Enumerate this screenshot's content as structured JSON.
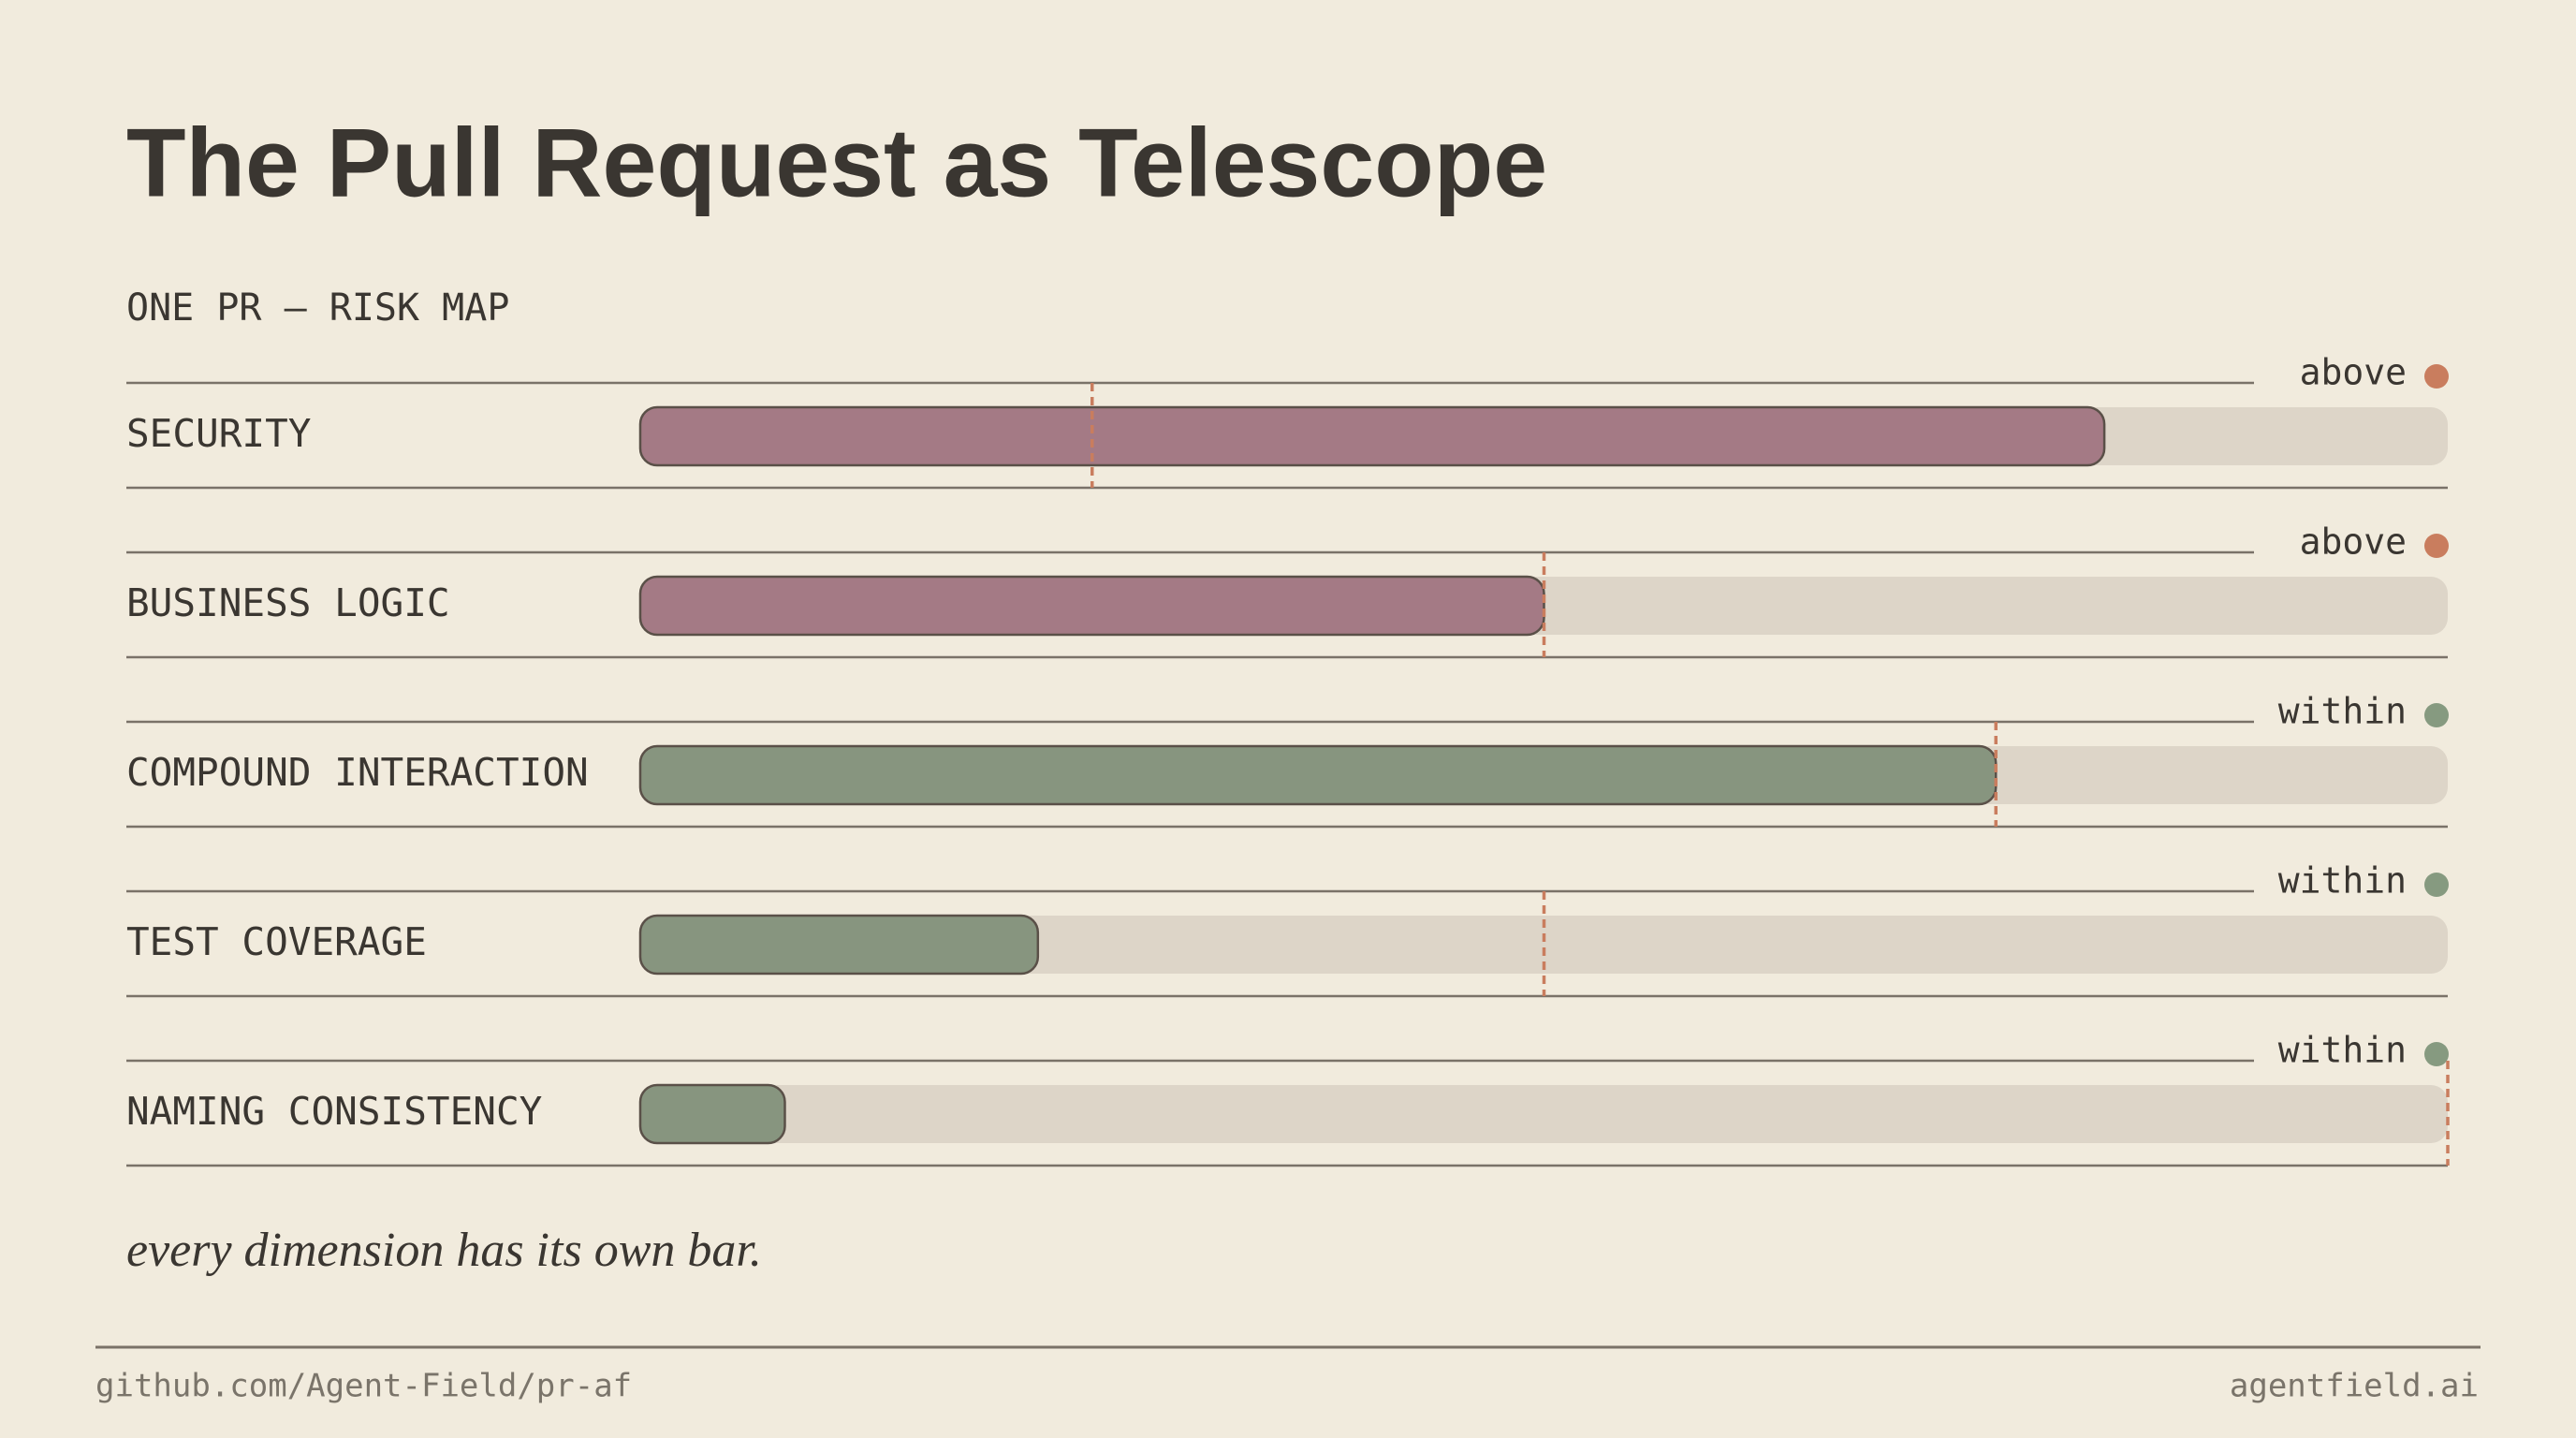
{
  "chart_data": {
    "type": "bar",
    "title": "The Pull Request as Telescope",
    "subtitle": "ONE PR — RISK MAP",
    "categories": [
      "SECURITY",
      "BUSINESS LOGIC",
      "COMPOUND INTERACTION",
      "TEST COVERAGE",
      "NAMING CONSISTENCY"
    ],
    "values": [
      81,
      50,
      75,
      22,
      8
    ],
    "thresholds": [
      25,
      50,
      75,
      50,
      100
    ],
    "status_labels": [
      "above",
      "above",
      "within",
      "within",
      "within"
    ],
    "colors": [
      "#a47a85",
      "#a47a85",
      "#87957f",
      "#87957f",
      "#87957f"
    ],
    "status_colors": [
      "#c97d5e",
      "#c97d5e",
      "#869a80",
      "#869a80",
      "#869a80"
    ],
    "threshold_color": "#c97d5e",
    "xlim": [
      0,
      100
    ],
    "annotation": "every dimension has its own bar.",
    "footer_left": "github.com/Agent-Field/pr-af",
    "footer_right": "agentfield.ai"
  }
}
